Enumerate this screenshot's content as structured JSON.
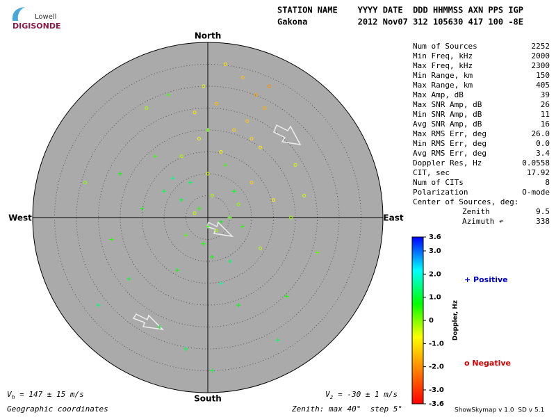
{
  "chart_data": {
    "type": "skymap",
    "logo": {
      "top": "Lowell",
      "bottom": "DIGISONDE"
    },
    "header": [
      "STATION NAME    YYYY DATE  DDD HHMMSS AXN PPS IGP",
      "Gakona          2012 Nov07 312 105630 417 100 -8E"
    ],
    "directions": {
      "north": "North",
      "south": "South",
      "west": "West",
      "east": "East"
    },
    "zenith_lim": [
      0,
      40
    ],
    "zenith_grid": [
      5,
      10,
      15,
      20,
      25,
      30,
      35
    ],
    "params": [
      [
        "Num of Sources",
        "2252"
      ],
      [
        "Min Freq, kHz",
        "2000"
      ],
      [
        "Max Freq, kHz",
        "2300"
      ],
      [
        "Min Range, km",
        "150"
      ],
      [
        "Max Range, km",
        "405"
      ],
      [
        "Max Amp, dB",
        "39"
      ],
      [
        "Max SNR Amp, dB",
        "26"
      ],
      [
        "Min SNR Amp, dB",
        "11"
      ],
      [
        "Avg SNR Amp, dB",
        "16"
      ],
      [
        "Max RMS Err, deg",
        "26.0"
      ],
      [
        "Min RMS Err, deg",
        "0.0"
      ],
      [
        "Avg RMS Err, deg",
        "3.4"
      ],
      [
        "Doppler Res, Hz",
        "0.0558"
      ],
      [
        "CIT, sec",
        "17.92"
      ],
      [
        "Num of CITs",
        "8"
      ],
      [
        "Polarization",
        "O-mode"
      ]
    ],
    "center_heading": "Center of Sources, deg:",
    "center": [
      [
        "Zenith",
        "9.5"
      ],
      [
        "Azimuth ↶",
        "338"
      ]
    ],
    "colorbar": {
      "label": "Doppler, Hz",
      "lim": [
        -3.6,
        3.6
      ],
      "colors": [
        "#ff0000",
        "#ff8000",
        "#ffff00",
        "#00ff00",
        "#00ffff",
        "#0000ff"
      ],
      "ticks": [
        3.6,
        {
          "value": 3.0,
          "label": "3.0"
        },
        {
          "value": 2.0,
          "label": "2.0"
        },
        {
          "value": 1.0,
          "label": "1.0"
        },
        0,
        {
          "value": -1.0,
          "label": "-1.0"
        },
        {
          "value": -2.0,
          "label": "-2.0"
        },
        {
          "value": -3.0,
          "label": "-3.0"
        },
        -3.6
      ]
    },
    "legend": {
      "positive": "+ Positive",
      "negative": "o Negative"
    },
    "points": {
      "east": [
        -2,
        1,
        3,
        -4,
        0,
        5,
        -6,
        2,
        -1,
        4,
        -3,
        6,
        -8,
        7,
        1,
        -5,
        3,
        -2,
        8,
        -10,
        10,
        -12,
        12,
        0,
        -7,
        5,
        -15,
        15,
        2,
        -3,
        9,
        11,
        13,
        14,
        8,
        10,
        12,
        6,
        -18,
        -20,
        20,
        -25,
        18,
        -14,
        -9,
        4,
        -11,
        16,
        22,
        -22,
        3,
        -6,
        7,
        -1,
        1,
        25,
        -28,
        -5,
        0,
        19
      ],
      "north": [
        2,
        5,
        -1,
        8,
        10,
        0,
        4,
        -3,
        -6,
        12,
        1,
        6,
        9,
        3,
        -9,
        -4,
        15,
        18,
        -2,
        6,
        8,
        14,
        -7,
        20,
        -12,
        -10,
        2,
        4,
        26,
        24,
        22,
        28,
        25,
        30,
        32,
        18,
        16,
        20,
        -14,
        10,
        12,
        -20,
        -18,
        25,
        28,
        35,
        -25,
        -28,
        5,
        -5,
        -15,
        14,
        -20,
        30,
        -35,
        -8,
        8,
        -30,
        -2,
        0
      ],
      "doppler": [
        0.5,
        -0.3,
        0.8,
        1.2,
        -0.5,
        0.2,
        1.0,
        -0.2,
        0.6,
        0.4,
        -0.4,
        0.9,
        1.5,
        -0.1,
        0.7,
        0.3,
        -0.8,
        -0.6,
        0.5,
        1.1,
        -1.2,
        0.4,
        -0.3,
        0.2,
        0.8,
        1.3,
        0.6,
        -0.7,
        -1.5,
        -1.0,
        -1.3,
        -1.8,
        -1.6,
        -2.0,
        -1.4,
        -1.1,
        -0.9,
        -1.2,
        1.0,
        0.7,
        -0.5,
        1.4,
        0.6,
        -0.2,
        0.3,
        -1.0,
        0.9,
        1.2,
        -0.4,
        0.5,
        1.6,
        -0.3,
        0.8,
        -0.6,
        1.0,
        0.2,
        -0.1,
        1.1,
        0.4,
        -0.2
      ]
    },
    "footer": {
      "vh_v": "V",
      "vh_sub": "h",
      "vh_rest": " = 147 ± 15 m/s",
      "vz_v": "V",
      "vz_sub": "z",
      "vz_rest": " = -30 ± 1 m/s",
      "coords": "Geographic coordinates",
      "zenith": "Zenith: max 40°  step 5°",
      "version": "ShowSkymap v 1.0  SD v 5.1"
    }
  }
}
